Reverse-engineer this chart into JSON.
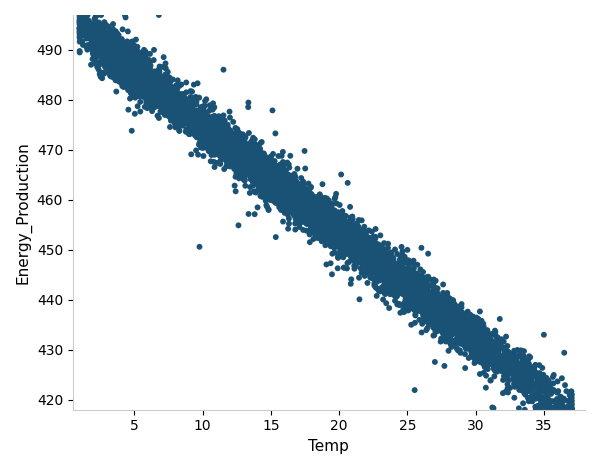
{
  "title": "",
  "xlabel": "Temp",
  "ylabel": "Energy_Production",
  "xlim": [
    0.5,
    38
  ],
  "ylim": [
    418,
    497
  ],
  "xticks": [
    5,
    10,
    15,
    20,
    25,
    30,
    35
  ],
  "yticks": [
    420,
    430,
    440,
    450,
    460,
    470,
    480,
    490
  ],
  "scatter_color": "#1a5276",
  "scatter_alpha": 1.0,
  "scatter_size": 18,
  "n_points": 8000,
  "seed": 42,
  "slope": -2.15,
  "intercept": 496.5,
  "noise_std": 2.2,
  "temp_min": 1,
  "temp_max": 37,
  "background_color": "#ffffff",
  "figsize": [
    6.0,
    4.69
  ],
  "dpi": 100,
  "xlabel_fontsize": 11,
  "ylabel_fontsize": 11,
  "tick_fontsize": 10
}
